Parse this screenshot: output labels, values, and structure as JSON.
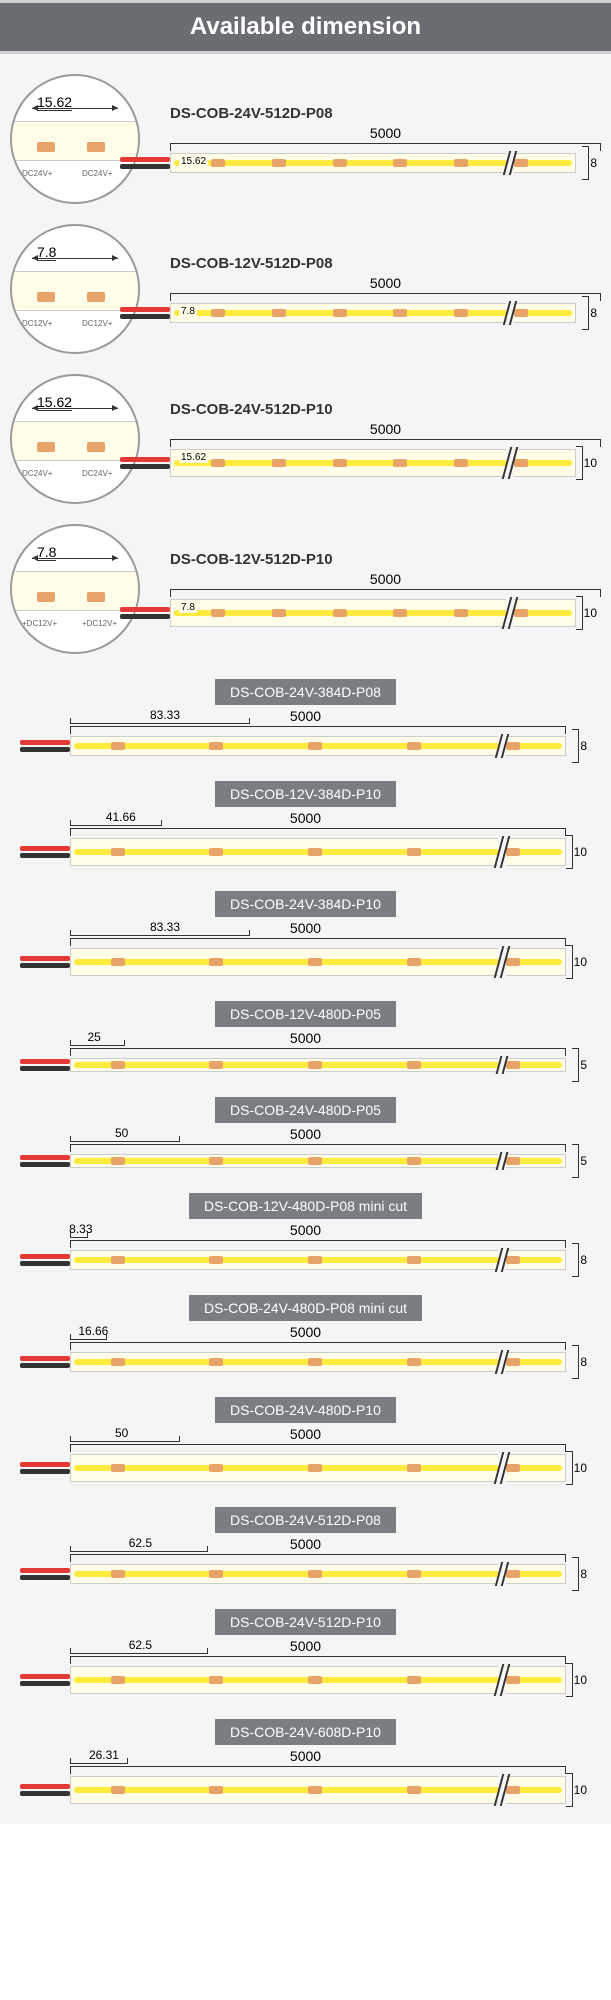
{
  "header_title": "Available dimension",
  "colors": {
    "header_bg": "#6a6d72",
    "label_bg": "#7a7d82",
    "strip_bg": "#fffde7",
    "led_yellow": "#ffeb3b",
    "pad_copper": "#e8a468",
    "wire_red": "#e53935",
    "wire_black": "#333333",
    "page_bg": "#f5f5f5"
  },
  "total_length": "5000",
  "magnified": [
    {
      "model": "DS-COB-24V-512D-P08",
      "segment": "15.62",
      "voltage": "DC24V+",
      "width": "8"
    },
    {
      "model": "DS-COB-12V-512D-P08",
      "segment": "7.8",
      "voltage": "DC12V+",
      "width": "8"
    },
    {
      "model": "DS-COB-24V-512D-P10",
      "segment": "15.62",
      "voltage": "DC24V+",
      "width": "10"
    },
    {
      "model": "DS-COB-12V-512D-P10",
      "segment": "7.8",
      "voltage": "+DC12V+",
      "width": "10"
    }
  ],
  "strips": [
    {
      "model": "DS-COB-24V-384D-P08",
      "segment": "83.33",
      "width": "8",
      "thickness": "med"
    },
    {
      "model": "DS-COB-12V-384D-P10",
      "segment": "41.66",
      "width": "10",
      "thickness": "thick"
    },
    {
      "model": "DS-COB-24V-384D-P10",
      "segment": "83.33",
      "width": "10",
      "thickness": "thick"
    },
    {
      "model": "DS-COB-12V-480D-P05",
      "segment": "25",
      "width": "5",
      "thickness": "thin"
    },
    {
      "model": "DS-COB-24V-480D-P05",
      "segment": "50",
      "width": "5",
      "thickness": "thin"
    },
    {
      "model": "DS-COB-12V-480D-P08 mini cut",
      "segment": "8.33",
      "width": "8",
      "thickness": "med"
    },
    {
      "model": "DS-COB-24V-480D-P08 mini cut",
      "segment": "16.66",
      "width": "8",
      "thickness": "med"
    },
    {
      "model": "DS-COB-24V-480D-P10",
      "segment": "50",
      "width": "10",
      "thickness": "thick"
    },
    {
      "model": "DS-COB-24V-512D-P08",
      "segment": "62.5",
      "width": "8",
      "thickness": "med"
    },
    {
      "model": "DS-COB-24V-512D-P10",
      "segment": "62.5",
      "width": "10",
      "thickness": "thick"
    },
    {
      "model": "DS-COB-24V-608D-P10",
      "segment": "26.31",
      "width": "10",
      "thickness": "thick"
    }
  ]
}
